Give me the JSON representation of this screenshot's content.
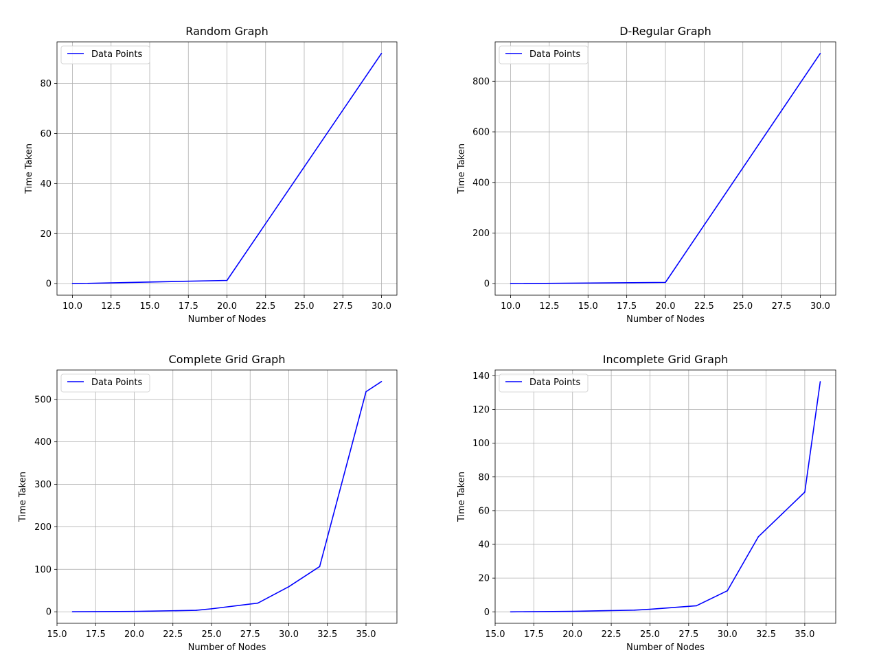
{
  "chart_data": [
    {
      "type": "line",
      "title": "Random Graph",
      "xlabel": "Number of Nodes",
      "ylabel": "Time Taken",
      "legend": {
        "label": "Data Points",
        "placement": "upper-left"
      },
      "line_color": "#0000ff",
      "grid": true,
      "xlim": [
        9.0,
        31.0
      ],
      "ylim": [
        -4.6,
        96.6
      ],
      "xticks": [
        10.0,
        12.5,
        15.0,
        17.5,
        20.0,
        22.5,
        25.0,
        27.5,
        30.0
      ],
      "xtick_labels": [
        "10.0",
        "12.5",
        "15.0",
        "17.5",
        "20.0",
        "22.5",
        "25.0",
        "27.5",
        "30.0"
      ],
      "yticks": [
        0,
        20,
        40,
        60,
        80
      ],
      "ytick_labels": [
        "0",
        "20",
        "40",
        "60",
        "80"
      ],
      "x": [
        10,
        20,
        30
      ],
      "y": [
        0.0,
        1.3,
        92.0
      ]
    },
    {
      "type": "line",
      "title": "D-Regular Graph",
      "xlabel": "Number of Nodes",
      "ylabel": "Time Taken",
      "legend": {
        "label": "Data Points",
        "placement": "upper-left"
      },
      "line_color": "#0000ff",
      "grid": true,
      "xlim": [
        9.0,
        31.0
      ],
      "ylim": [
        -45.5,
        955.5
      ],
      "xticks": [
        10.0,
        12.5,
        15.0,
        17.5,
        20.0,
        22.5,
        25.0,
        27.5,
        30.0
      ],
      "xtick_labels": [
        "10.0",
        "12.5",
        "15.0",
        "17.5",
        "20.0",
        "22.5",
        "25.0",
        "27.5",
        "30.0"
      ],
      "yticks": [
        0,
        200,
        400,
        600,
        800
      ],
      "ytick_labels": [
        "0",
        "200",
        "400",
        "600",
        "800"
      ],
      "x": [
        10,
        20,
        30
      ],
      "y": [
        0.0,
        5.0,
        910.0
      ]
    },
    {
      "type": "line",
      "title": "Complete Grid Graph",
      "xlabel": "Number of Nodes",
      "ylabel": "Time Taken",
      "legend": {
        "label": "Data Points",
        "placement": "upper-left"
      },
      "line_color": "#0000ff",
      "grid": true,
      "xlim": [
        15.0,
        37.0
      ],
      "ylim": [
        -27.1,
        569.1
      ],
      "xticks": [
        15.0,
        17.5,
        20.0,
        22.5,
        25.0,
        27.5,
        30.0,
        32.5,
        35.0
      ],
      "xtick_labels": [
        "15.0",
        "17.5",
        "20.0",
        "22.5",
        "25.0",
        "27.5",
        "30.0",
        "32.5",
        "35.0"
      ],
      "yticks": [
        0,
        100,
        200,
        300,
        400,
        500
      ],
      "ytick_labels": [
        "0",
        "100",
        "200",
        "300",
        "400",
        "500"
      ],
      "x": [
        16,
        20,
        24,
        25,
        28,
        30,
        32,
        35,
        36
      ],
      "y": [
        0.0,
        0.8,
        3.5,
        7.0,
        20.5,
        59.0,
        106.5,
        518.0,
        542.0
      ]
    },
    {
      "type": "line",
      "title": "Incomplete Grid Graph",
      "xlabel": "Number of Nodes",
      "ylabel": "Time Taken",
      "legend": {
        "label": "Data Points",
        "placement": "upper-left"
      },
      "line_color": "#0000ff",
      "grid": true,
      "xlim": [
        15.0,
        37.0
      ],
      "ylim": [
        -6.8,
        143.4
      ],
      "xticks": [
        15.0,
        17.5,
        20.0,
        22.5,
        25.0,
        27.5,
        30.0,
        32.5,
        35.0
      ],
      "xtick_labels": [
        "15.0",
        "17.5",
        "20.0",
        "22.5",
        "25.0",
        "27.5",
        "30.0",
        "32.5",
        "35.0"
      ],
      "yticks": [
        0,
        20,
        40,
        60,
        80,
        100,
        120,
        140
      ],
      "ytick_labels": [
        "0",
        "20",
        "40",
        "60",
        "80",
        "100",
        "120",
        "140"
      ],
      "x": [
        16,
        20,
        24,
        25,
        28,
        30,
        32,
        35,
        36
      ],
      "y": [
        0.0,
        0.3,
        1.0,
        1.5,
        3.6,
        12.5,
        44.5,
        71.0,
        136.5
      ]
    }
  ]
}
